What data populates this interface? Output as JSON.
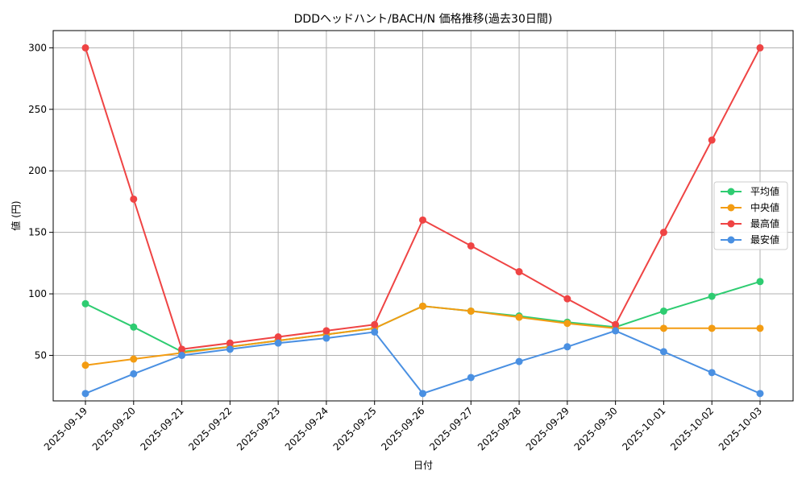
{
  "chart_data": {
    "type": "line",
    "title": "DDDヘッドハント/BACH/N 価格推移(過去30日間)",
    "xlabel": "日付",
    "ylabel": "値 (円)",
    "categories": [
      "2025-09-19",
      "2025-09-20",
      "2025-09-21",
      "2025-09-22",
      "2025-09-23",
      "2025-09-24",
      "2025-09-25",
      "2025-09-26",
      "2025-09-27",
      "2025-09-28",
      "2025-09-29",
      "2025-09-30",
      "2025-10-01",
      "2025-10-02",
      "2025-10-03"
    ],
    "yticks": [
      50,
      100,
      150,
      200,
      250,
      300
    ],
    "ylim": [
      13,
      314
    ],
    "grid": true,
    "legend_position": "center-right",
    "series": [
      {
        "name": "平均値",
        "color": "#2ecc71",
        "values": [
          92,
          73,
          53,
          57,
          62,
          67,
          72,
          90,
          86,
          82,
          77,
          73,
          86,
          98,
          110
        ]
      },
      {
        "name": "中央値",
        "color": "#f39c12",
        "values": [
          42,
          47,
          52,
          57,
          62,
          67,
          72,
          90,
          86,
          81,
          76,
          72,
          72,
          72,
          72
        ]
      },
      {
        "name": "最高値",
        "color": "#ef4444",
        "values": [
          300,
          177,
          55,
          60,
          65,
          70,
          75,
          160,
          139,
          118,
          96,
          75,
          150,
          225,
          300
        ]
      },
      {
        "name": "最安値",
        "color": "#4a90e2",
        "values": [
          19,
          35,
          50,
          55,
          60,
          64,
          69,
          19,
          32,
          45,
          57,
          70,
          53,
          36,
          19
        ]
      }
    ]
  }
}
